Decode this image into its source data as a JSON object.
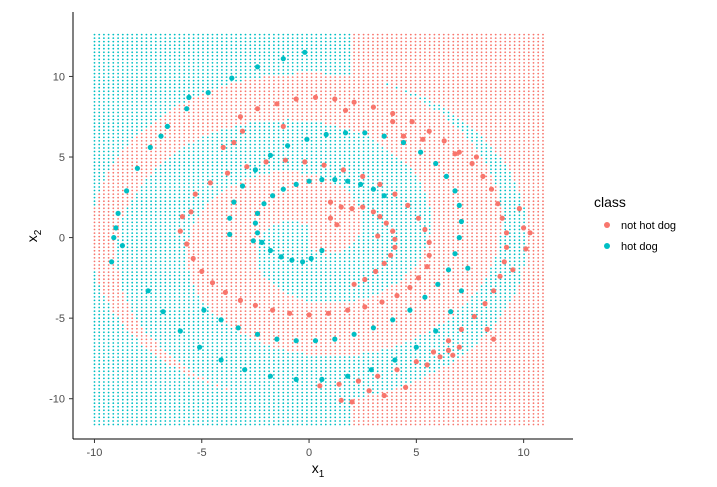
{
  "chart_data": {
    "type": "scatter",
    "title": "",
    "xlabel": "x",
    "xlabel_subscript": "1",
    "ylabel": "x",
    "ylabel_subscript": "2",
    "xlim": [
      -11,
      12.3
    ],
    "ylim": [
      -12.5,
      14
    ],
    "xticks": [
      -10,
      -5,
      0,
      5,
      10
    ],
    "xtick_labels": [
      "-10",
      "-5",
      "0",
      "5",
      "10"
    ],
    "yticks": [
      -10,
      -5,
      0,
      5,
      10
    ],
    "ytick_labels": [
      "-10",
      "-5",
      "0",
      "5",
      "10"
    ],
    "grid": false,
    "legend": {
      "title": "class",
      "placement": "right",
      "entries": [
        {
          "label": "not hot dog",
          "color": "#F8766D"
        },
        {
          "label": "hot dog",
          "color": "#00BFC4"
        }
      ]
    },
    "decision_grid": {
      "x_range": [
        -10,
        11
      ],
      "y_range": [
        -11.6,
        12.7
      ],
      "step": 0.22,
      "description": "predicted class background over a regular grid"
    },
    "series": [
      {
        "name": "not hot dog",
        "color": "#F8766D",
        "points": [
          [
            1.0,
            2.2
          ],
          [
            1.5,
            1.9
          ],
          [
            2.0,
            1.8
          ],
          [
            2.5,
            1.9
          ],
          [
            3.0,
            1.6
          ],
          [
            3.3,
            1.3
          ],
          [
            3.6,
            0.9
          ],
          [
            3.9,
            0.4
          ],
          [
            4.0,
            -0.1
          ],
          [
            4.0,
            -0.6
          ],
          [
            3.8,
            -1.1
          ],
          [
            3.5,
            -1.6
          ],
          [
            3.1,
            -2.1
          ],
          [
            2.6,
            -2.6
          ],
          [
            2.1,
            -2.9
          ],
          [
            1.0,
            1.2
          ],
          [
            1.3,
            0.8
          ],
          [
            3.2,
            0.1
          ],
          [
            -5.5,
            1.6
          ],
          [
            -5.9,
            1.3
          ],
          [
            -6.0,
            0.4
          ],
          [
            -5.7,
            -0.4
          ],
          [
            -5.4,
            -1.3
          ],
          [
            -5.0,
            -2.1
          ],
          [
            -4.5,
            -2.8
          ],
          [
            -3.9,
            -3.4
          ],
          [
            -3.2,
            -3.9
          ],
          [
            -2.5,
            -4.2
          ],
          [
            -1.7,
            -4.5
          ],
          [
            -0.9,
            -4.7
          ],
          [
            0.0,
            -4.8
          ],
          [
            0.9,
            -4.7
          ],
          [
            1.8,
            -4.5
          ],
          [
            2.6,
            -4.3
          ],
          [
            3.4,
            -4.0
          ],
          [
            4.1,
            -3.6
          ],
          [
            4.7,
            -3.1
          ],
          [
            5.1,
            -2.5
          ],
          [
            5.5,
            -1.8
          ],
          [
            5.6,
            -1.1
          ],
          [
            5.6,
            -0.3
          ],
          [
            5.4,
            0.5
          ],
          [
            5.1,
            1.2
          ],
          [
            4.6,
            2.0
          ],
          [
            4.0,
            2.7
          ],
          [
            3.3,
            3.3
          ],
          [
            2.5,
            3.8
          ],
          [
            1.6,
            4.2
          ],
          [
            0.7,
            4.5
          ],
          [
            -0.2,
            4.7
          ],
          [
            -1.1,
            4.8
          ],
          [
            -2.0,
            4.7
          ],
          [
            -2.9,
            4.4
          ],
          [
            -3.8,
            4.0
          ],
          [
            -4.6,
            3.4
          ],
          [
            -5.3,
            2.7
          ],
          [
            -3.2,
            7.5
          ],
          [
            -2.4,
            8.0
          ],
          [
            -1.5,
            8.3
          ],
          [
            -0.6,
            8.6
          ],
          [
            0.3,
            8.7
          ],
          [
            1.2,
            8.6
          ],
          [
            2.1,
            8.4
          ],
          [
            3.0,
            8.1
          ],
          [
            3.9,
            7.7
          ],
          [
            4.8,
            7.2
          ],
          [
            5.6,
            6.6
          ],
          [
            6.3,
            6.0
          ],
          [
            7.0,
            5.3
          ],
          [
            7.6,
            4.6
          ],
          [
            8.1,
            3.8
          ],
          [
            8.5,
            3.0
          ],
          [
            8.8,
            2.1
          ],
          [
            9.0,
            1.2
          ],
          [
            9.2,
            0.3
          ],
          [
            9.2,
            -0.6
          ],
          [
            9.1,
            -1.5
          ],
          [
            8.9,
            -2.4
          ],
          [
            8.6,
            -3.3
          ],
          [
            8.2,
            -4.1
          ],
          [
            7.7,
            -4.9
          ],
          [
            7.1,
            -5.7
          ],
          [
            6.5,
            -6.4
          ],
          [
            5.8,
            -7.1
          ],
          [
            5.0,
            -7.7
          ],
          [
            4.1,
            -8.2
          ],
          [
            3.2,
            -8.6
          ],
          [
            2.3,
            -8.9
          ],
          [
            1.4,
            -9.1
          ],
          [
            0.5,
            -9.2
          ],
          [
            10.0,
            0.6
          ],
          [
            9.8,
            1.8
          ],
          [
            10.3,
            0.3
          ],
          [
            10.1,
            -0.7
          ],
          [
            9.5,
            -2.0
          ],
          [
            8.3,
            -5.7
          ],
          [
            8.6,
            -6.3
          ],
          [
            7.0,
            -6.8
          ],
          [
            6.7,
            -7.3
          ],
          [
            5.5,
            -7.9
          ],
          [
            4.5,
            -9.3
          ],
          [
            3.5,
            -9.8
          ],
          [
            2.0,
            -10.2
          ],
          [
            1.5,
            -10.1
          ],
          [
            2.8,
            -9.5
          ],
          [
            6.1,
            -7.4
          ],
          [
            6.5,
            -7.0
          ],
          [
            -3.5,
            5.9
          ],
          [
            -4.0,
            5.6
          ],
          [
            -3.1,
            6.6
          ],
          [
            -1.2,
            6.9
          ],
          [
            1.7,
            7.9
          ],
          [
            3.9,
            7.2
          ],
          [
            4.4,
            6.3
          ],
          [
            5.3,
            6.1
          ],
          [
            6.8,
            5.2
          ],
          [
            7.8,
            5.0
          ]
        ]
      },
      {
        "name": "hot dog",
        "color": "#00BFC4",
        "points": [
          [
            0.1,
            -1.3
          ],
          [
            -0.3,
            -1.5
          ],
          [
            -0.8,
            -1.4
          ],
          [
            -1.3,
            -1.2
          ],
          [
            -1.8,
            -0.8
          ],
          [
            -2.2,
            -0.3
          ],
          [
            -2.4,
            0.3
          ],
          [
            -2.5,
            0.9
          ],
          [
            -2.4,
            1.5
          ],
          [
            -2.1,
            2.1
          ],
          [
            -1.7,
            2.6
          ],
          [
            -1.2,
            3.0
          ],
          [
            -0.6,
            3.3
          ],
          [
            0.0,
            3.5
          ],
          [
            0.6,
            3.6
          ],
          [
            1.2,
            3.6
          ],
          [
            1.8,
            3.5
          ],
          [
            2.4,
            3.3
          ],
          [
            3.0,
            3.0
          ],
          [
            3.5,
            2.6
          ],
          [
            0.6,
            -0.8
          ],
          [
            -2.6,
            -0.2
          ],
          [
            -3.7,
            0.2
          ],
          [
            -3.7,
            1.2
          ],
          [
            -3.5,
            2.2
          ],
          [
            -3.1,
            3.2
          ],
          [
            -2.5,
            4.2
          ],
          [
            -1.8,
            5.1
          ],
          [
            -1.0,
            5.7
          ],
          [
            -0.1,
            6.1
          ],
          [
            0.8,
            6.4
          ],
          [
            1.7,
            6.5
          ],
          [
            2.6,
            6.5
          ],
          [
            3.5,
            6.3
          ],
          [
            4.4,
            5.9
          ],
          [
            5.2,
            5.3
          ],
          [
            5.9,
            4.6
          ],
          [
            6.4,
            3.8
          ],
          [
            6.8,
            2.9
          ],
          [
            7.0,
            2.0
          ],
          [
            7.1,
            1.0
          ],
          [
            7.0,
            0.0
          ],
          [
            6.8,
            -1.0
          ],
          [
            6.5,
            -2.0
          ],
          [
            6.0,
            -2.9
          ],
          [
            5.4,
            -3.7
          ],
          [
            4.7,
            -4.5
          ],
          [
            3.9,
            -5.1
          ],
          [
            3.0,
            -5.6
          ],
          [
            2.1,
            -6.0
          ],
          [
            1.2,
            -6.3
          ],
          [
            0.3,
            -6.4
          ],
          [
            -0.6,
            -6.4
          ],
          [
            -1.5,
            -6.3
          ],
          [
            -2.4,
            -6.0
          ],
          [
            -3.3,
            -5.6
          ],
          [
            -4.1,
            -5.1
          ],
          [
            -4.9,
            -4.5
          ],
          [
            -9.2,
            -1.5
          ],
          [
            -9.1,
            0.0
          ],
          [
            -8.9,
            1.5
          ],
          [
            -8.5,
            2.9
          ],
          [
            -8.0,
            4.3
          ],
          [
            -7.4,
            5.6
          ],
          [
            -6.6,
            6.9
          ],
          [
            -5.7,
            8.0
          ],
          [
            -4.7,
            9.0
          ],
          [
            -3.6,
            9.9
          ],
          [
            -2.4,
            10.6
          ],
          [
            -1.2,
            11.1
          ],
          [
            -0.2,
            11.5
          ],
          [
            -7.5,
            -3.3
          ],
          [
            -6.8,
            -4.6
          ],
          [
            -6.0,
            -5.8
          ],
          [
            -5.1,
            -6.8
          ],
          [
            -4.1,
            -7.6
          ],
          [
            -3.0,
            -8.2
          ],
          [
            -1.8,
            -8.6
          ],
          [
            -0.6,
            -8.8
          ],
          [
            0.6,
            -8.8
          ],
          [
            1.8,
            -8.6
          ],
          [
            2.9,
            -8.2
          ],
          [
            4.0,
            -7.6
          ],
          [
            5.0,
            -6.8
          ],
          [
            5.9,
            -5.8
          ],
          [
            6.6,
            -4.6
          ],
          [
            7.1,
            -3.3
          ],
          [
            7.4,
            -1.9
          ],
          [
            -9.0,
            0.6
          ],
          [
            -8.7,
            -0.5
          ],
          [
            -5.6,
            8.7
          ],
          [
            -6.9,
            6.3
          ]
        ]
      }
    ]
  }
}
